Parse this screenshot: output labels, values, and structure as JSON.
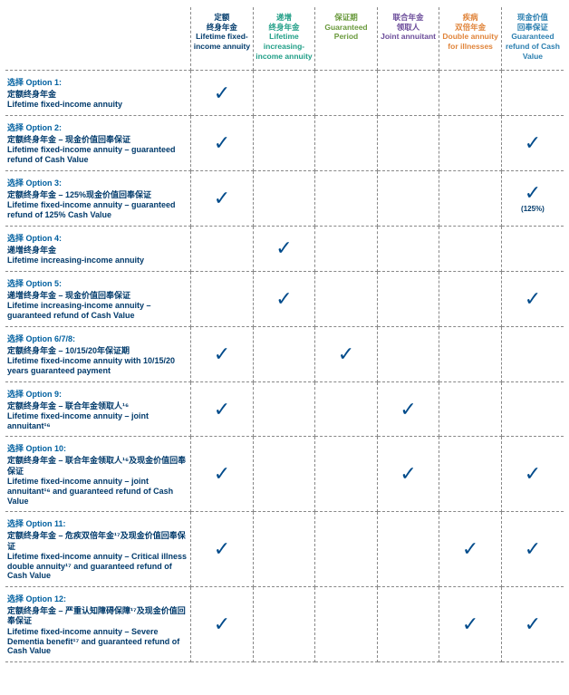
{
  "colors": {
    "col1": "#003a6b",
    "col2": "#1f9e86",
    "col3": "#6a9a3d",
    "col4": "#6b4c9a",
    "col5": "#e0843a",
    "col6": "#2b7fb0",
    "check": "#004b8b",
    "opt_label": "#0060a0",
    "text": "#003a6b",
    "border": "#888888",
    "background": "#ffffff"
  },
  "headers": [
    {
      "zh": "定额\n终身年金",
      "en": "Lifetime fixed-income annuity",
      "color_key": "col1"
    },
    {
      "zh": "递增\n终身年金",
      "en": "Lifetime increasing-income annuity",
      "color_key": "col2"
    },
    {
      "zh": "保证期",
      "en": "Guaranteed Period",
      "color_key": "col3"
    },
    {
      "zh": "联合年金\n领取人",
      "en": "Joint annuitant",
      "color_key": "col4"
    },
    {
      "zh": "疾病\n双倍年金",
      "en": "Double annuity for illnesses",
      "color_key": "col5"
    },
    {
      "zh": "现金价值\n回奉保证",
      "en": "Guaranteed refund of Cash Value",
      "color_key": "col6"
    }
  ],
  "rows": [
    {
      "opt": "选择 Option 1:",
      "zh": "定额终身年金",
      "en": "Lifetime fixed-income annuity",
      "checks": [
        true,
        false,
        false,
        false,
        false,
        false
      ],
      "note6": ""
    },
    {
      "opt": "选择 Option 2:",
      "zh": "定额终身年金 – 现金价值回奉保证",
      "en": "Lifetime fixed-income annuity – guaranteed refund of Cash Value",
      "checks": [
        true,
        false,
        false,
        false,
        false,
        true
      ],
      "note6": ""
    },
    {
      "opt": "选择 Option 3:",
      "zh": "定额终身年金 – 125%现金价值回奉保证",
      "en": "Lifetime fixed-income annuity – guaranteed refund of 125% Cash Value",
      "checks": [
        true,
        false,
        false,
        false,
        false,
        true
      ],
      "note6": "(125%)"
    },
    {
      "opt": "选择 Option 4:",
      "zh": "递增终身年金",
      "en": "Lifetime increasing-income annuity",
      "checks": [
        false,
        true,
        false,
        false,
        false,
        false
      ],
      "note6": ""
    },
    {
      "opt": "选择 Option 5:",
      "zh": "递增终身年金 – 现金价值回奉保证",
      "en": "Lifetime increasing-income annuity – guaranteed refund of Cash Value",
      "checks": [
        false,
        true,
        false,
        false,
        false,
        true
      ],
      "note6": ""
    },
    {
      "opt": "选择 Option 6/7/8:",
      "zh": "定额终身年金 – 10/15/20年保证期",
      "en": "Lifetime fixed-income annuity with 10/15/20 years guaranteed payment",
      "checks": [
        true,
        false,
        true,
        false,
        false,
        false
      ],
      "note6": ""
    },
    {
      "opt": "选择 Option 9:",
      "zh": "定额终身年金 – 联合年金领取人¹⁶",
      "en": "Lifetime fixed-income annuity – joint annuitant¹⁶",
      "checks": [
        true,
        false,
        false,
        true,
        false,
        false
      ],
      "note6": ""
    },
    {
      "opt": "选择 Option 10:",
      "zh": "定额终身年金 – 联合年金领取人¹⁶及现金价值回奉保证",
      "en": "Lifetime fixed-income annuity – joint annuitant¹⁶ and guaranteed refund of Cash Value",
      "checks": [
        true,
        false,
        false,
        true,
        false,
        true
      ],
      "note6": ""
    },
    {
      "opt": "选择 Option 11:",
      "zh": "定额终身年金 – 危疾双倍年金¹⁷及现金价值回奉保证",
      "en": "Lifetime fixed-income annuity – Critical illness double annuity¹⁷ and guaranteed refund of Cash Value",
      "checks": [
        true,
        false,
        false,
        false,
        true,
        true
      ],
      "note6": ""
    },
    {
      "opt": "选择 Option 12:",
      "zh": "定额终身年金 – 严重认知障碍保障¹⁷及现金价值回奉保证",
      "en": "Lifetime fixed-income annuity – Severe Dementia benefit¹⁷ and guaranteed refund of Cash Value",
      "checks": [
        true,
        false,
        false,
        false,
        true,
        true
      ],
      "note6": ""
    }
  ],
  "check_glyph": "✓"
}
